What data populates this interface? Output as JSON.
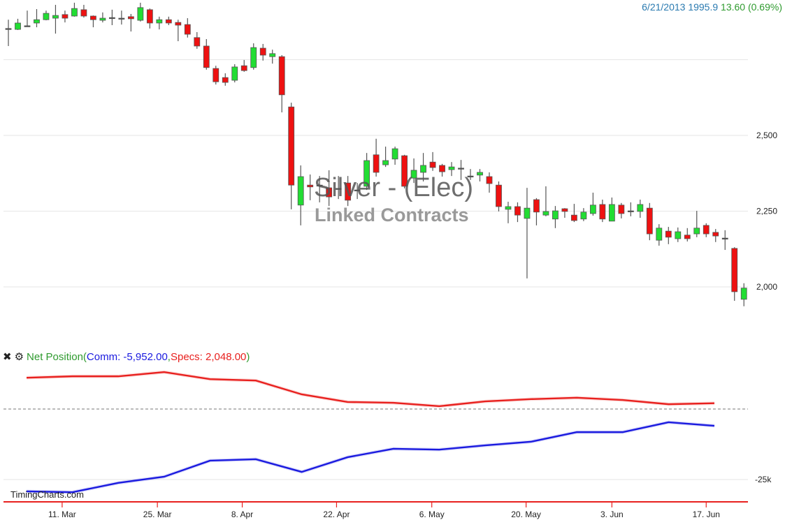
{
  "header": {
    "quote_date": "6/21/2013",
    "quote_price": "1995.9",
    "quote_change": "13.60 (0.69%)"
  },
  "watermark": {
    "title": "Silver - (Elec)",
    "subtitle": "Linked Contracts"
  },
  "indicator": {
    "close_icon": "close-icon",
    "settings_icon": "gear-icon",
    "name": "Net Position(",
    "comm": "Comm: -5,952.00",
    "sep": ",",
    "specs": "Specs: 2,048.00",
    "close_paren": ")"
  },
  "credit": "TimingCharts.com",
  "colors": {
    "up": "#22dd33",
    "down": "#ee1111",
    "comm": "#1a1adf",
    "specs": "#e8201e"
  },
  "chart_data": [
    {
      "type": "candlestick",
      "title": "Silver - (Elec) Linked Contracts",
      "ylim": [
        1900,
        2950
      ],
      "yticks": [
        {
          "v": 2750,
          "label": ""
        },
        {
          "v": 2500,
          "label": "2,500"
        },
        {
          "v": 2250,
          "label": "2,250"
        },
        {
          "v": 2000,
          "label": "2,000"
        }
      ],
      "xticks": [
        {
          "i": 5.7,
          "label": "11. Mar"
        },
        {
          "i": 15.8,
          "label": "25. Mar"
        },
        {
          "i": 24.8,
          "label": "8. Apr"
        },
        {
          "i": 34.8,
          "label": "22. Apr"
        },
        {
          "i": 44.9,
          "label": "6. May"
        },
        {
          "i": 54.9,
          "label": "20. May"
        },
        {
          "i": 64,
          "label": "3. Jun"
        },
        {
          "i": 74,
          "label": "17. Jun"
        }
      ],
      "ohlc": [
        [
          2853,
          2882,
          2795,
          2853
        ],
        [
          2850,
          2885,
          2848,
          2871
        ],
        [
          2862,
          2912,
          2859,
          2862
        ],
        [
          2871,
          2917,
          2857,
          2882
        ],
        [
          2882,
          2912,
          2880,
          2903
        ],
        [
          2887,
          2931,
          2836,
          2896
        ],
        [
          2899,
          2912,
          2873,
          2887
        ],
        [
          2894,
          2938,
          2892,
          2919
        ],
        [
          2915,
          2931,
          2889,
          2894
        ],
        [
          2894,
          2896,
          2857,
          2882
        ],
        [
          2880,
          2906,
          2873,
          2887
        ],
        [
          2889,
          2915,
          2864,
          2889
        ],
        [
          2887,
          2912,
          2866,
          2887
        ],
        [
          2892,
          2901,
          2843,
          2885
        ],
        [
          2880,
          2938,
          2876,
          2922
        ],
        [
          2915,
          2919,
          2853,
          2871
        ],
        [
          2871,
          2892,
          2850,
          2882
        ],
        [
          2882,
          2892,
          2864,
          2871
        ],
        [
          2873,
          2882,
          2811,
          2864
        ],
        [
          2866,
          2887,
          2823,
          2834
        ],
        [
          2823,
          2841,
          2786,
          2795
        ],
        [
          2795,
          2818,
          2717,
          2724
        ],
        [
          2721,
          2730,
          2668,
          2677
        ],
        [
          2691,
          2705,
          2664,
          2675
        ],
        [
          2682,
          2735,
          2675,
          2726
        ],
        [
          2730,
          2749,
          2710,
          2714
        ],
        [
          2724,
          2804,
          2717,
          2790
        ],
        [
          2788,
          2802,
          2747,
          2765
        ],
        [
          2760,
          2783,
          2737,
          2770
        ],
        [
          2760,
          2765,
          2576,
          2634
        ],
        [
          2594,
          2608,
          2256,
          2336
        ],
        [
          2270,
          2401,
          2203,
          2364
        ],
        [
          2336,
          2371,
          2286,
          2330
        ],
        [
          2336,
          2366,
          2279,
          2336
        ],
        [
          2327,
          2385,
          2267,
          2297
        ],
        [
          2325,
          2366,
          2290,
          2325
        ],
        [
          2343,
          2366,
          2267,
          2286
        ],
        [
          2320,
          2343,
          2290,
          2320
        ],
        [
          2332,
          2442,
          2320,
          2417
        ],
        [
          2436,
          2489,
          2364,
          2378
        ],
        [
          2403,
          2463,
          2396,
          2417
        ],
        [
          2422,
          2463,
          2403,
          2456
        ],
        [
          2433,
          2436,
          2325,
          2332
        ],
        [
          2359,
          2424,
          2343,
          2385
        ],
        [
          2378,
          2442,
          2348,
          2401
        ],
        [
          2412,
          2445,
          2383,
          2394
        ],
        [
          2401,
          2406,
          2364,
          2380
        ],
        [
          2387,
          2412,
          2366,
          2396
        ],
        [
          2392,
          2419,
          2353,
          2392
        ],
        [
          2366,
          2389,
          2353,
          2366
        ],
        [
          2369,
          2389,
          2348,
          2378
        ],
        [
          2364,
          2378,
          2311,
          2341
        ],
        [
          2336,
          2348,
          2249,
          2265
        ],
        [
          2256,
          2281,
          2210,
          2265
        ],
        [
          2265,
          2279,
          2214,
          2237
        ],
        [
          2226,
          2327,
          2028,
          2260
        ],
        [
          2288,
          2293,
          2203,
          2247
        ],
        [
          2237,
          2332,
          2233,
          2249
        ],
        [
          2224,
          2267,
          2194,
          2251
        ],
        [
          2258,
          2260,
          2228,
          2249
        ],
        [
          2237,
          2274,
          2214,
          2219
        ],
        [
          2224,
          2260,
          2217,
          2247
        ],
        [
          2242,
          2311,
          2235,
          2270
        ],
        [
          2272,
          2288,
          2214,
          2224
        ],
        [
          2217,
          2295,
          2217,
          2272
        ],
        [
          2270,
          2277,
          2226,
          2242
        ],
        [
          2251,
          2279,
          2233,
          2251
        ],
        [
          2249,
          2288,
          2228,
          2272
        ],
        [
          2260,
          2277,
          2154,
          2175
        ],
        [
          2154,
          2207,
          2136,
          2194
        ],
        [
          2184,
          2198,
          2141,
          2164
        ],
        [
          2159,
          2196,
          2148,
          2182
        ],
        [
          2171,
          2194,
          2150,
          2159
        ],
        [
          2175,
          2251,
          2164,
          2194
        ],
        [
          2203,
          2210,
          2164,
          2175
        ],
        [
          2180,
          2191,
          2148,
          2168
        ],
        [
          2161,
          2187,
          2122,
          2161
        ],
        [
          2127,
          2131,
          1954,
          1984
        ],
        [
          1959,
          2012,
          1936,
          1996
        ]
      ]
    },
    {
      "type": "line",
      "title": "Net Position",
      "ylabel_ticks": [
        {
          "v": 0,
          "label": ""
        },
        {
          "v": -25,
          "label": "-25k"
        }
      ],
      "units": "thousands of contracts",
      "series": [
        {
          "name": "Comm",
          "values": [
            -29.2,
            -29.5,
            -26.2,
            -24.0,
            -18.3,
            -17.8,
            -22.3,
            -17.1,
            -14.1,
            -14.4,
            -12.9,
            -11.6,
            -8.2,
            -8.2,
            -4.7,
            -5.952
          ]
        },
        {
          "name": "Specs",
          "values": [
            11.1,
            11.6,
            11.6,
            13.1,
            10.6,
            10.1,
            5.2,
            2.5,
            2.2,
            1.0,
            2.7,
            3.5,
            4.0,
            3.2,
            1.7,
            2.048
          ]
        }
      ]
    }
  ]
}
